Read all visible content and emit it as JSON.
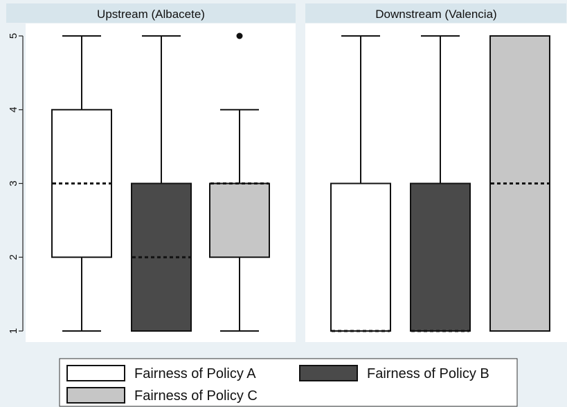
{
  "chart_data": {
    "type": "box",
    "panels": [
      {
        "title": "Upstream (Albacete)",
        "boxes": [
          {
            "series": "Fairness of Policy A",
            "min": 1,
            "q1": 2,
            "median": 3,
            "q3": 4,
            "max": 5,
            "outliers": []
          },
          {
            "series": "Fairness of Policy B",
            "min": 1,
            "q1": 1,
            "median": 2,
            "q3": 3,
            "max": 5,
            "outliers": []
          },
          {
            "series": "Fairness of Policy C",
            "min": 1,
            "q1": 2,
            "median": 3,
            "q3": 3,
            "max": 4,
            "outliers": [
              5
            ]
          }
        ]
      },
      {
        "title": "Downstream (Valencia)",
        "boxes": [
          {
            "series": "Fairness of Policy A",
            "min": 1,
            "q1": 1,
            "median": 1,
            "q3": 3,
            "max": 5,
            "outliers": []
          },
          {
            "series": "Fairness of Policy B",
            "min": 1,
            "q1": 1,
            "median": 1,
            "q3": 3,
            "max": 5,
            "outliers": []
          },
          {
            "series": "Fairness of Policy C",
            "min": 1,
            "q1": 1,
            "median": 3,
            "q3": 5,
            "max": 5,
            "outliers": []
          }
        ]
      }
    ],
    "y_ticks": [
      "1",
      "2",
      "3",
      "4",
      "5"
    ],
    "ylim": [
      1,
      5
    ],
    "grid": false,
    "legend_position": "bottom",
    "series": [
      {
        "name": "Fairness of Policy A",
        "color": "#ffffff"
      },
      {
        "name": "Fairness of Policy B",
        "color": "#4a4a4a"
      },
      {
        "name": "Fairness of Policy C",
        "color": "#c6c6c6"
      }
    ]
  }
}
